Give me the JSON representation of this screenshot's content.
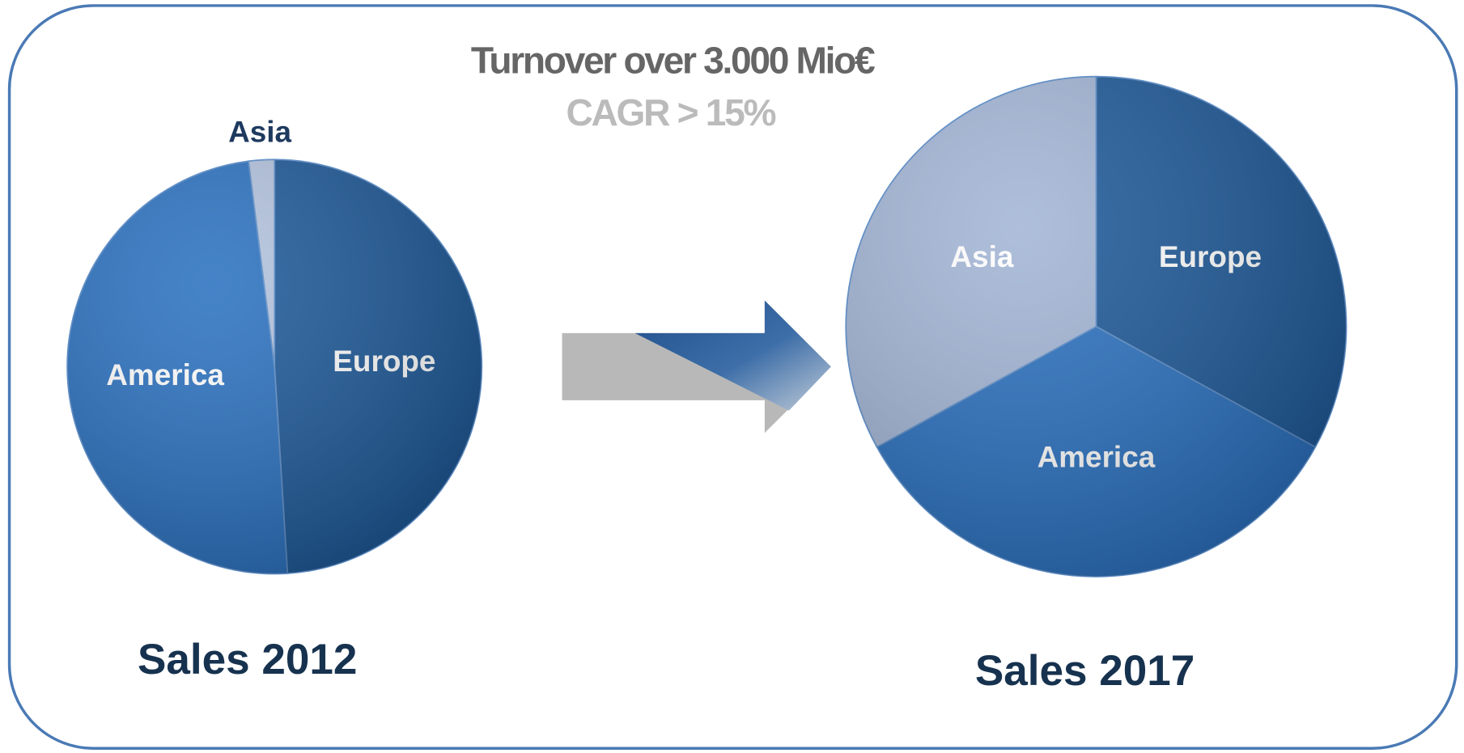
{
  "header": {
    "title": "Turnover over 3.000 Mio€",
    "subtitle": "CAGR > 15%"
  },
  "chart_data": [
    {
      "type": "pie",
      "title": "Sales 2012",
      "categories": [
        "Europe",
        "America",
        "Asia"
      ],
      "values": [
        49,
        49,
        2
      ],
      "colors": [
        "#1f5a99",
        "#2c72c0",
        "#b4c4df"
      ]
    },
    {
      "type": "pie",
      "title": "Sales 2017",
      "categories": [
        "Europe",
        "America",
        "Asia"
      ],
      "values": [
        33,
        34,
        33
      ],
      "colors": [
        "#1f5a99",
        "#2c72c0",
        "#a3b6d6"
      ]
    }
  ]
}
